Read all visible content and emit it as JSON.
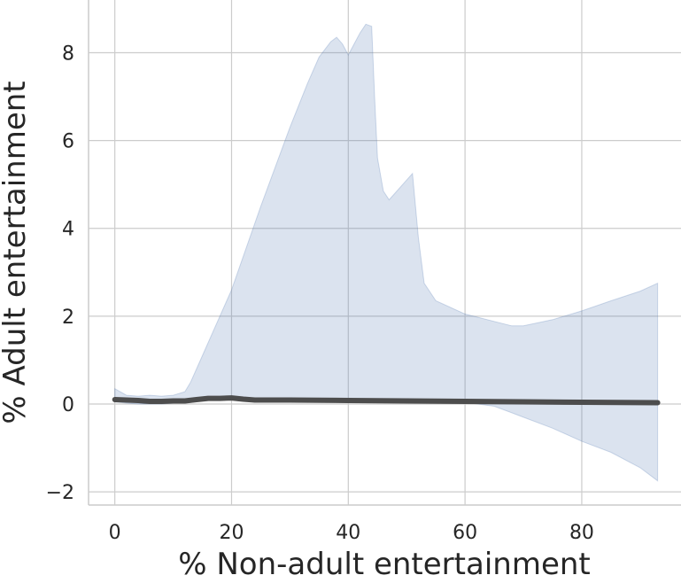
{
  "chart_data": {
    "type": "line",
    "title": "",
    "xlabel": "% Non-adult entertainment",
    "ylabel": "% Adult entertainment",
    "xlim": [
      -4.5,
      97
    ],
    "ylim": [
      -2.3,
      9.2
    ],
    "xticks": [
      0,
      20,
      40,
      60,
      80
    ],
    "yticks": [
      -2,
      0,
      2,
      4,
      6,
      8
    ],
    "xtick_labels": [
      "0",
      "20",
      "40",
      "60",
      "80"
    ],
    "ytick_labels": [
      "−2",
      "0",
      "2",
      "4",
      "6",
      "8"
    ],
    "grid": true,
    "colors": {
      "line": "#4d4d4d",
      "band": "#4c72b0",
      "grid": "#cccccc",
      "background": "#ffffff"
    },
    "series": [
      {
        "type": "line",
        "x": [
          0,
          2,
          4,
          6,
          8,
          10,
          12,
          14,
          16,
          18,
          20,
          22,
          24,
          26,
          30,
          40,
          50,
          60,
          70,
          80,
          93
        ],
        "values": [
          0.1,
          0.09,
          0.08,
          0.06,
          0.06,
          0.07,
          0.07,
          0.1,
          0.13,
          0.13,
          0.14,
          0.11,
          0.09,
          0.09,
          0.09,
          0.08,
          0.07,
          0.06,
          0.05,
          0.04,
          0.03
        ]
      }
    ],
    "confidence_band": {
      "x": [
        0,
        2,
        4,
        6,
        8,
        10,
        12,
        13,
        15,
        17,
        20,
        25,
        30,
        33,
        35,
        37,
        38,
        39,
        40,
        41,
        42,
        43,
        44,
        44.5,
        45,
        46,
        47,
        50,
        51,
        52,
        53,
        55,
        60,
        65,
        68,
        70,
        75,
        80,
        85,
        90,
        93
      ],
      "upper": [
        0.35,
        0.2,
        0.18,
        0.2,
        0.18,
        0.2,
        0.28,
        0.5,
        1.1,
        1.7,
        2.6,
        4.5,
        6.3,
        7.3,
        7.9,
        8.25,
        8.35,
        8.2,
        7.95,
        8.2,
        8.45,
        8.65,
        8.6,
        7.0,
        5.6,
        4.85,
        4.65,
        5.1,
        5.25,
        3.8,
        2.75,
        2.35,
        2.05,
        1.88,
        1.78,
        1.78,
        1.92,
        2.12,
        2.35,
        2.57,
        2.75
      ],
      "lower": [
        0.05,
        0.02,
        0.0,
        0.0,
        0.0,
        0.02,
        0.02,
        0.04,
        0.1,
        0.12,
        0.12,
        0.08,
        0.07,
        0.07,
        0.07,
        0.07,
        0.07,
        0.07,
        0.07,
        0.07,
        0.07,
        0.07,
        0.07,
        0.07,
        0.07,
        0.07,
        0.07,
        0.06,
        0.06,
        0.06,
        0.06,
        0.06,
        0.04,
        -0.05,
        -0.2,
        -0.3,
        -0.55,
        -0.85,
        -1.1,
        -1.45,
        -1.75
      ]
    }
  }
}
